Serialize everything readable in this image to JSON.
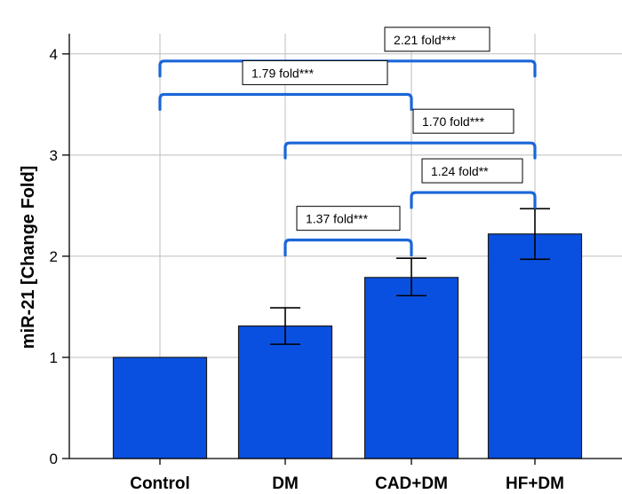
{
  "chart_data": {
    "type": "bar",
    "ylabel": "miR-21 [Change Fold]",
    "xlabel": "",
    "ylim": [
      0,
      4.2
    ],
    "yticks": [
      0,
      1,
      2,
      3,
      4
    ],
    "grid": true,
    "categories": [
      "Control",
      "DM",
      "CAD+DM",
      "HF+DM"
    ],
    "values": [
      1.0,
      1.31,
      1.79,
      2.22
    ],
    "error_low": [
      1.0,
      1.13,
      1.61,
      1.97
    ],
    "error_high": [
      1.0,
      1.49,
      1.98,
      2.47
    ],
    "comparisons": [
      {
        "from": "Control",
        "to": "HF+DM",
        "label": "2.21 fold***",
        "level": 3.93
      },
      {
        "from": "Control",
        "to": "CAD+DM",
        "label": "1.79 fold***",
        "level": 3.6
      },
      {
        "from": "DM",
        "to": "HF+DM",
        "label": "1.70 fold***",
        "level": 3.12
      },
      {
        "from": "CAD+DM",
        "to": "HF+DM",
        "label": "1.24 fold**",
        "level": 2.63
      },
      {
        "from": "DM",
        "to": "CAD+DM",
        "label": "1.37 fold***",
        "level": 2.16
      }
    ],
    "colors": {
      "bar": "#0a50e0",
      "bar_edge": "#1a1a1a",
      "bracket": "#1a66d9",
      "grid": "#bdbdbd",
      "axis": "#000000"
    }
  }
}
